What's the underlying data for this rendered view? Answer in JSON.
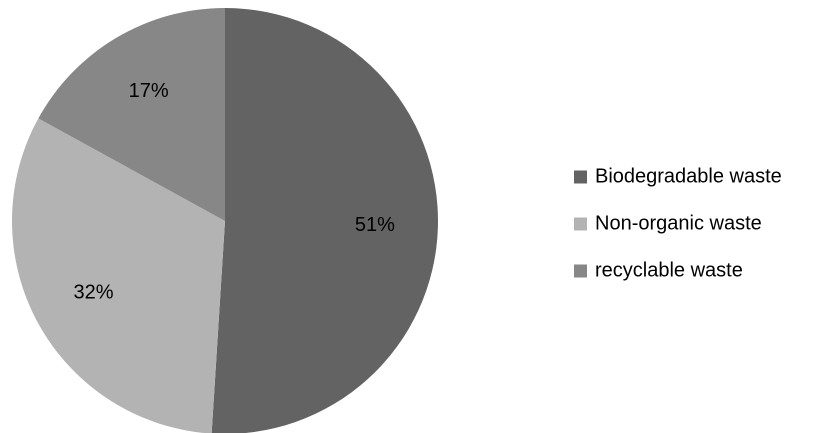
{
  "chart_data": {
    "type": "pie",
    "title": "",
    "categories": [
      "Biodegradable waste",
      "Non-organic waste",
      "recyclable waste"
    ],
    "values": [
      51,
      32,
      17
    ],
    "data_labels": [
      "51%",
      "32%",
      "17%"
    ],
    "colors": [
      "#636363",
      "#b3b3b3",
      "#878787"
    ],
    "legend": {
      "placement": "right",
      "entries": [
        "Biodegradable waste",
        "Non-organic waste",
        "recyclable waste"
      ]
    },
    "start": "12 o'clock",
    "direction": "clockwise"
  }
}
